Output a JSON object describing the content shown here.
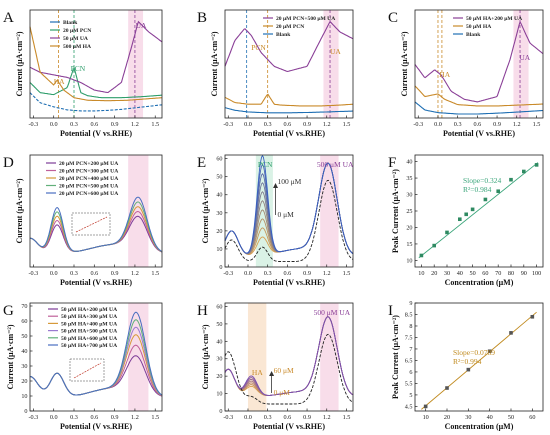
{
  "colors": {
    "blank": "#1f6fb3",
    "pcn": "#2e9e6b",
    "ua": "#8a3f97",
    "ha": "#c98a2a",
    "mix": "#5b6bbf",
    "fit": "#3aa57a",
    "fit_i": "#c08a1e",
    "band_pink": "#f6d2e3",
    "band_green": "#cdeedd",
    "band_orange": "#f8dfc6"
  },
  "chart_data": [
    {
      "panel": "A",
      "type": "line",
      "xlabel": "Potential (V vs.RHE)",
      "ylabel": "Current (μA·cm⁻²)",
      "xticks": [
        "-0.3",
        "0.0",
        "0.3",
        "0.6",
        "0.9",
        "1.2",
        "1.5"
      ],
      "xlim": [
        -0.35,
        1.6
      ],
      "legend": [
        "Blank",
        "20 μM PCN",
        "50 μM UA",
        "500 μM HA"
      ],
      "annotations": [
        "HA",
        "PCN",
        "UA"
      ],
      "series": [
        {
          "name": "Blank",
          "x": [
            -0.35,
            -0.2,
            0.0,
            0.2,
            0.4,
            0.6,
            0.8,
            1.0,
            1.2,
            1.4,
            1.6
          ],
          "y": [
            5.0,
            3.0,
            2.2,
            1.6,
            1.4,
            1.4,
            1.5,
            1.7,
            2.0,
            2.3,
            2.6
          ]
        },
        {
          "name": "20 μM PCN",
          "x": [
            -0.35,
            -0.2,
            0.0,
            0.2,
            0.3,
            0.4,
            0.5,
            0.7,
            1.0,
            1.3,
            1.6
          ],
          "y": [
            7.0,
            5.0,
            4.6,
            6.0,
            10.0,
            5.0,
            4.4,
            4.0,
            4.0,
            4.2,
            4.5
          ]
        },
        {
          "name": "50 μM UA",
          "x": [
            -0.35,
            -0.2,
            0.0,
            0.2,
            0.4,
            0.6,
            0.8,
            1.0,
            1.15,
            1.25,
            1.4,
            1.6
          ],
          "y": [
            10.0,
            9.0,
            8.5,
            8.0,
            7.0,
            5.5,
            5.0,
            7.0,
            14.0,
            19.0,
            17.0,
            15.0
          ]
        },
        {
          "name": "500 μM HA",
          "x": [
            -0.35,
            -0.2,
            0.0,
            0.05,
            0.15,
            0.3,
            0.5,
            0.8,
            1.1,
            1.4,
            1.6
          ],
          "y": [
            18.0,
            9.0,
            6.5,
            7.5,
            5.5,
            4.0,
            3.5,
            3.4,
            3.5,
            3.8,
            4.0
          ]
        }
      ]
    },
    {
      "panel": "B",
      "type": "line",
      "xlabel": "Potential (V vs.RHE)",
      "ylabel": "Current (μA·cm⁻²)",
      "xticks": [
        "-0.3",
        "0.0",
        "0.3",
        "0.6",
        "0.9",
        "1.2",
        "1.5"
      ],
      "xlim": [
        -0.35,
        1.6
      ],
      "legend": [
        "20 μM PCN+500 μM UA",
        "20 μM PCN",
        "Blank"
      ],
      "annotations": [
        "PCN",
        "UA"
      ],
      "series": [
        {
          "name": "20 μM PCN+500 μM UA",
          "x": [
            -0.35,
            -0.2,
            -0.05,
            0.05,
            0.2,
            0.4,
            0.6,
            0.9,
            1.1,
            1.25,
            1.4,
            1.6
          ],
          "y": [
            30.0,
            45.0,
            52.0,
            48.0,
            38.0,
            30.0,
            27.0,
            30.0,
            45.0,
            56.0,
            50.0,
            46.0
          ]
        },
        {
          "name": "20 μM PCN",
          "x": [
            -0.35,
            -0.2,
            0.0,
            0.2,
            0.3,
            0.4,
            0.5,
            0.8,
            1.1,
            1.4,
            1.6
          ],
          "y": [
            12.0,
            9.0,
            8.0,
            8.0,
            14.0,
            8.0,
            7.5,
            7.0,
            7.0,
            7.5,
            8.0
          ]
        },
        {
          "name": "Blank",
          "x": [
            -0.35,
            -0.2,
            0.0,
            0.3,
            0.6,
            0.9,
            1.2,
            1.4,
            1.6
          ],
          "y": [
            6.0,
            4.5,
            3.5,
            3.0,
            3.0,
            3.2,
            3.5,
            3.8,
            4.0
          ]
        }
      ]
    },
    {
      "panel": "C",
      "type": "line",
      "xlabel": "Potential (V vs.RHE)",
      "ylabel": "Current (μA·cm⁻²)",
      "xticks": [
        "-0.3",
        "0.0",
        "0.3",
        "0.6",
        "0.9",
        "1.2",
        "1.5"
      ],
      "xlim": [
        -0.35,
        1.6
      ],
      "legend": [
        "50 μM HA+200 μM UA",
        "50 μM HA",
        "Blank"
      ],
      "annotations": [
        "HA",
        "UA"
      ],
      "series": [
        {
          "name": "50 μM HA+200 μM UA",
          "x": [
            -0.35,
            -0.2,
            -0.05,
            0.05,
            0.2,
            0.4,
            0.6,
            0.9,
            1.1,
            1.25,
            1.4,
            1.6
          ],
          "y": [
            20.0,
            15.0,
            18.0,
            16.0,
            10.0,
            7.0,
            6.0,
            8.0,
            22.0,
            36.0,
            28.0,
            24.0
          ]
        },
        {
          "name": "50 μM HA",
          "x": [
            -0.35,
            -0.2,
            0.0,
            0.1,
            0.3,
            0.6,
            0.9,
            1.2,
            1.4,
            1.6
          ],
          "y": [
            12.0,
            8.0,
            9.0,
            7.0,
            5.0,
            4.5,
            4.5,
            4.8,
            5.0,
            5.2
          ]
        },
        {
          "name": "Blank",
          "x": [
            -0.35,
            -0.2,
            0.0,
            0.3,
            0.6,
            0.9,
            1.2,
            1.4,
            1.6
          ],
          "y": [
            6.0,
            3.0,
            2.0,
            1.5,
            1.5,
            1.8,
            2.2,
            2.5,
            2.8
          ]
        }
      ]
    },
    {
      "panel": "D",
      "type": "line",
      "xlabel": "Potential (V vs.RHE)",
      "ylabel": "Current (μA·cm⁻²)",
      "xticks": [
        "-0.3",
        "0.0",
        "0.3",
        "0.6",
        "0.9",
        "1.2",
        "1.5"
      ],
      "xlim": [
        -0.35,
        1.6
      ],
      "legend": [
        "20 μM PCN+200 μM UA",
        "20 μM PCN+300 μM UA",
        "20 μM PCN+400 μM UA",
        "20 μM PCN+500 μM UA",
        "20 μM PCN+600 μM UA"
      ],
      "peak_scale": [
        1.0,
        1.15,
        1.3,
        1.45,
        1.6
      ]
    },
    {
      "panel": "E",
      "type": "line",
      "xlabel": "Potential (V vs.RHE)",
      "ylabel": "Current (μA·cm⁻²)",
      "yticks": [
        "0",
        "10",
        "20",
        "30",
        "40",
        "50",
        "60"
      ],
      "ylim": [
        0,
        62
      ],
      "xticks": [
        "-0.3",
        "0.0",
        "0.3",
        "0.6",
        "0.9",
        "1.2",
        "1.5"
      ],
      "xlim": [
        -0.35,
        1.6
      ],
      "annotations": [
        "PCN",
        "500 μM UA",
        "100 μM",
        "0 μM"
      ],
      "pcn_peaks": [
        10,
        15,
        20,
        25,
        30,
        35,
        40,
        45,
        50,
        55
      ]
    },
    {
      "panel": "F",
      "type": "scatter",
      "xlabel": "Concentration (μM)",
      "ylabel": "Peak Current (μA·cm⁻²)",
      "xticks": [
        "10",
        "20",
        "30",
        "40",
        "50",
        "60",
        "70",
        "80",
        "90",
        "100"
      ],
      "yticks": [
        "10",
        "15",
        "20",
        "25",
        "30",
        "35",
        "40"
      ],
      "xlim": [
        5,
        105
      ],
      "ylim": [
        8,
        42
      ],
      "x": [
        10,
        20,
        30,
        40,
        45,
        50,
        60,
        70,
        80,
        90,
        100
      ],
      "y": [
        11.5,
        14.5,
        18.5,
        22.5,
        24.0,
        25.5,
        28.5,
        31.0,
        34.5,
        37.0,
        39.0
      ],
      "annotations": [
        "Slope=0.324",
        "R²=0.984"
      ]
    },
    {
      "panel": "G",
      "type": "line",
      "xlabel": "Potential (V vs.RHE)",
      "ylabel": "Current (μA·cm⁻²)",
      "yticks": [
        "0",
        "10",
        "20",
        "30",
        "40",
        "50",
        "60",
        "70"
      ],
      "ylim": [
        0,
        72
      ],
      "xticks": [
        "-0.3",
        "0.0",
        "0.3",
        "0.6",
        "0.9",
        "1.2",
        "1.5"
      ],
      "xlim": [
        -0.35,
        1.6
      ],
      "legend": [
        "50 μM HA+200 μM UA",
        "50 μM HA+300 μM UA",
        "50 μM HA+400 μM UA",
        "50 μM HA+500 μM UA",
        "50 μM HA+600 μM UA",
        "50 μM HA+700 μM UA"
      ],
      "ua_peaks": [
        33,
        40,
        47,
        52,
        57,
        62
      ]
    },
    {
      "panel": "H",
      "type": "line",
      "xlabel": "Potential (V vs.RHE)",
      "ylabel": "Current (μA·cm⁻²)",
      "yticks": [
        "0",
        "10",
        "20",
        "30",
        "40",
        "50",
        "60"
      ],
      "ylim": [
        0,
        62
      ],
      "xticks": [
        "-0.3",
        "0.0",
        "0.3",
        "0.6",
        "0.9",
        "1.2",
        "1.5"
      ],
      "xlim": [
        -0.35,
        1.6
      ],
      "annotations": [
        "500 μM UA",
        "HA",
        "60 μM",
        "0 μM"
      ],
      "ha_peaks": [
        14,
        15,
        16,
        17,
        18,
        19,
        20
      ]
    },
    {
      "panel": "I",
      "type": "scatter",
      "xlabel": "Concentration (μM)",
      "ylabel": "Peak Current (μA·cm⁻²)",
      "xticks": [
        "10",
        "20",
        "30",
        "40",
        "50",
        "60"
      ],
      "yticks": [
        "4.5",
        "5",
        "5.5",
        "6",
        "6.5",
        "7",
        "7.5",
        "8",
        "8.5",
        "9"
      ],
      "xlim": [
        5,
        65
      ],
      "ylim": [
        4.3,
        9.0
      ],
      "x": [
        10,
        20,
        30,
        40,
        50,
        60
      ],
      "y": [
        4.5,
        5.3,
        6.1,
        6.9,
        7.7,
        8.4
      ],
      "annotations": [
        "Slope=0.0789",
        "R²=0.994"
      ]
    }
  ]
}
